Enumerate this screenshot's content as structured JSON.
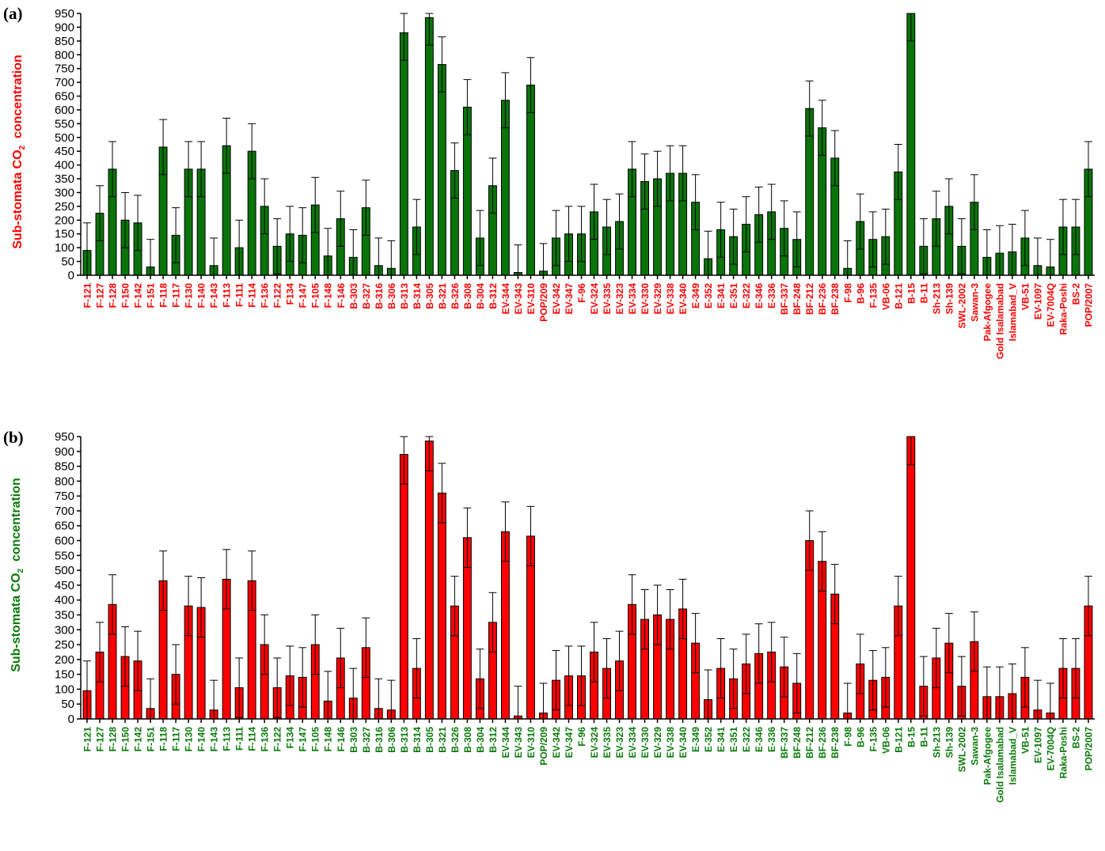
{
  "panels": [
    {
      "label": "(a)",
      "ylabel_pre": "Sub-stomata CO",
      "ylabel_sub": "2",
      "ylabel_post": "  concentration"
    },
    {
      "label": "(b)",
      "ylabel_pre": "Sub-stomata CO",
      "ylabel_sub": "2",
      "ylabel_post": "  concentration"
    }
  ],
  "colors": {
    "panel_a_bar": "#0a740a",
    "panel_a_text": "#ff0000",
    "panel_b_bar": "#ff0000",
    "panel_b_text": "#0a7a0a"
  },
  "chart_data": [
    {
      "type": "bar",
      "title": "(a)",
      "ylabel": "Sub-stomata CO2  concentration",
      "ylim": [
        0,
        950
      ],
      "yticks": [
        0,
        50,
        100,
        150,
        200,
        250,
        300,
        350,
        400,
        450,
        500,
        550,
        600,
        650,
        700,
        750,
        800,
        850,
        900,
        950
      ],
      "categories": [
        "F-121",
        "F-127",
        "F-128",
        "F-150",
        "F-142",
        "F-151",
        "F-118",
        "F-117",
        "F-130",
        "F-140",
        "F-143",
        "F-113",
        "F-111",
        "F-114",
        "F-136",
        "F-122",
        "F134",
        "F-147",
        "F-105",
        "F-148",
        "F-146",
        "B-303",
        "B-327",
        "B-316",
        "B-306",
        "B-313",
        "B-314",
        "B-305",
        "B-321",
        "B-326",
        "B-308",
        "B-304",
        "B-312",
        "EV-344",
        "EV-343",
        "EV-310",
        "POP/209",
        "EV-342",
        "EV-347",
        "F-96",
        "EV-324",
        "EV-335",
        "EV-323",
        "EV-334",
        "EV-330",
        "EV-329",
        "EV-338",
        "EV-340",
        "E-349",
        "E-352",
        "E-341",
        "E-351",
        "E-322",
        "E-346",
        "E-336",
        "BF-337",
        "BF-248",
        "BF-212",
        "BF-236",
        "BF-238",
        "F-98",
        "B-96",
        "F-135",
        "VB-06",
        "B-121",
        "B-15",
        "B-11",
        "Sh-213",
        "Sh-139",
        "SWL-2002",
        "Sawan-3",
        "Pak-Afgogee",
        "Gold Isalamabad",
        "Islamabad_V",
        "VB-51",
        "EV-1097",
        "EV-7004Q",
        "Raka-Poshi",
        "BS-2",
        "POP/2007"
      ],
      "values": [
        90,
        225,
        385,
        200,
        190,
        30,
        465,
        145,
        385,
        385,
        35,
        470,
        100,
        450,
        250,
        105,
        150,
        145,
        255,
        70,
        205,
        65,
        245,
        35,
        25,
        880,
        175,
        935,
        765,
        380,
        610,
        135,
        325,
        635,
        10,
        690,
        15,
        135,
        150,
        150,
        230,
        175,
        195,
        385,
        340,
        350,
        370,
        370,
        265,
        60,
        165,
        140,
        185,
        220,
        230,
        170,
        130,
        605,
        535,
        425,
        25,
        195,
        130,
        140,
        375,
        950,
        105,
        205,
        250,
        105,
        265,
        65,
        80,
        85,
        135,
        35,
        30,
        175,
        175,
        385
      ],
      "errors": [
        100,
        100,
        100,
        100,
        100,
        100,
        100,
        100,
        100,
        100,
        100,
        100,
        100,
        100,
        100,
        100,
        100,
        100,
        100,
        100,
        100,
        100,
        100,
        100,
        100,
        100,
        100,
        100,
        100,
        100,
        100,
        100,
        100,
        100,
        100,
        100,
        100,
        100,
        100,
        100,
        100,
        100,
        100,
        100,
        100,
        100,
        100,
        100,
        100,
        100,
        100,
        100,
        100,
        100,
        100,
        100,
        100,
        100,
        100,
        100,
        100,
        100,
        100,
        100,
        100,
        100,
        100,
        100,
        100,
        100,
        100,
        100,
        100,
        100,
        100,
        100,
        100,
        100,
        100,
        100
      ]
    },
    {
      "type": "bar",
      "title": "(b)",
      "ylabel": "Sub-stomata CO2  concentration",
      "ylim": [
        0,
        950
      ],
      "yticks": [
        0,
        50,
        100,
        150,
        200,
        250,
        300,
        350,
        400,
        450,
        500,
        550,
        600,
        650,
        700,
        750,
        800,
        850,
        900,
        950
      ],
      "categories": [
        "F-121",
        "F-127",
        "F-128",
        "F-150",
        "F-142",
        "F-151",
        "F-118",
        "F-117",
        "F-130",
        "F-140",
        "F-143",
        "F-113",
        "F-111",
        "F-114",
        "F-136",
        "F-122",
        "F134",
        "F-147",
        "F-105",
        "F-148",
        "F-146",
        "B-303",
        "B-327",
        "B-316",
        "B-306",
        "B-313",
        "B-314",
        "B-305",
        "B-321",
        "B-326",
        "B-308",
        "B-304",
        "B-312",
        "EV-344",
        "EV-343",
        "EV-310",
        "POP/209",
        "EV-342",
        "EV-347",
        "F-96",
        "EV-324",
        "EV-335",
        "EV-323",
        "EV-334",
        "EV-330",
        "EV-329",
        "EV-338",
        "EV-340",
        "E-349",
        "E-352",
        "E-341",
        "E-351",
        "E-322",
        "E-346",
        "E-336",
        "BF-337",
        "BF-248",
        "BF-212",
        "BF-236",
        "BF-238",
        "F-98",
        "B-96",
        "F-135",
        "VB-06",
        "B-121",
        "B-15",
        "B-11",
        "Sh-213",
        "Sh-139",
        "SWL-2002",
        "Sawan-3",
        "Pak-Afgogee",
        "Gold Isalamabad",
        "Islamabad_V",
        "VB-51",
        "EV-1097",
        "EV-7004Q",
        "Raka-Poshi",
        "BS-2",
        "POP/2007"
      ],
      "values": [
        95,
        225,
        385,
        210,
        195,
        35,
        465,
        150,
        380,
        375,
        30,
        470,
        105,
        465,
        250,
        105,
        145,
        140,
        250,
        60,
        205,
        70,
        240,
        35,
        30,
        890,
        170,
        935,
        760,
        380,
        610,
        135,
        325,
        630,
        10,
        615,
        20,
        130,
        145,
        145,
        225,
        170,
        195,
        385,
        335,
        350,
        335,
        370,
        255,
        65,
        170,
        135,
        185,
        220,
        225,
        175,
        120,
        600,
        530,
        420,
        20,
        185,
        130,
        140,
        380,
        955,
        110,
        205,
        255,
        110,
        260,
        75,
        75,
        85,
        140,
        30,
        20,
        170,
        170,
        380
      ],
      "errors": [
        100,
        100,
        100,
        100,
        100,
        100,
        100,
        100,
        100,
        100,
        100,
        100,
        100,
        100,
        100,
        100,
        100,
        100,
        100,
        100,
        100,
        100,
        100,
        100,
        100,
        100,
        100,
        100,
        100,
        100,
        100,
        100,
        100,
        100,
        100,
        100,
        100,
        100,
        100,
        100,
        100,
        100,
        100,
        100,
        100,
        100,
        100,
        100,
        100,
        100,
        100,
        100,
        100,
        100,
        100,
        100,
        100,
        100,
        100,
        100,
        100,
        100,
        100,
        100,
        100,
        100,
        100,
        100,
        100,
        100,
        100,
        100,
        100,
        100,
        100,
        100,
        100,
        100,
        100,
        100
      ]
    }
  ]
}
